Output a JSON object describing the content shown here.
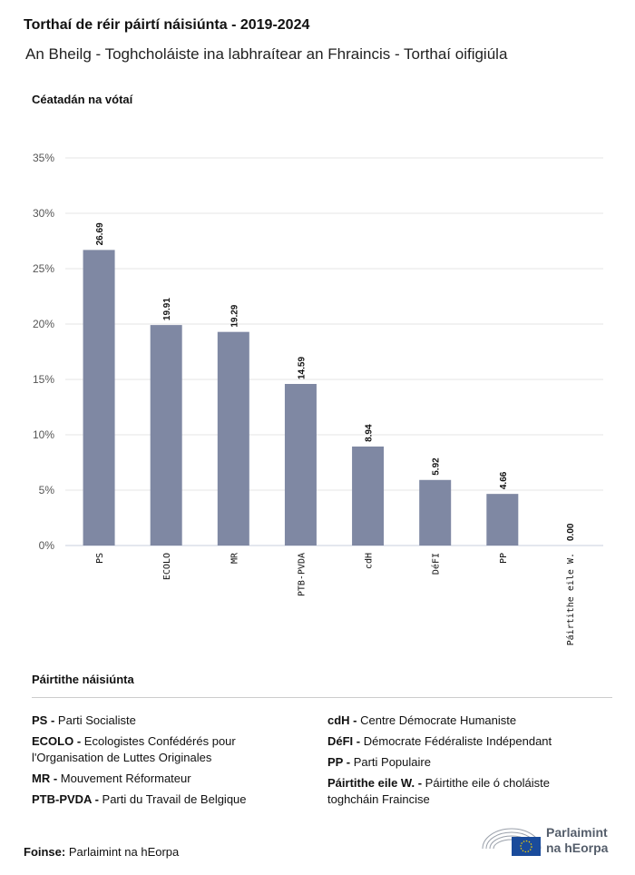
{
  "header": {
    "title": "Torthaí de réir páirtí náisiúnta - 2019-2024",
    "subtitle": "An Bheilg - Toghcholáiste ina labhraítear an Fhraincis - Torthaí oifigiúla"
  },
  "chart_data": {
    "type": "bar",
    "title": "Torthaí de réir páirtí náisiúnta - 2019-2024",
    "subtitle": "An Bheilg - Toghcholáiste ina labhraítear an Fhraincis - Torthaí oifigiúla",
    "ylabel": "Céatadán na vótaí",
    "xlabel": "",
    "categories": [
      "PS",
      "ECOLO",
      "MR",
      "PTB-PVDA",
      "cdH",
      "DéFI",
      "PP",
      "Páirtithe eile W."
    ],
    "values": [
      26.69,
      19.91,
      19.29,
      14.59,
      8.94,
      5.92,
      4.66,
      0.0
    ],
    "ylim": [
      0,
      35
    ],
    "yticks": [
      0,
      5,
      10,
      15,
      20,
      25,
      30,
      35
    ],
    "ytick_labels": [
      "0%",
      "5%",
      "10%",
      "15%",
      "20%",
      "25%",
      "30%",
      "35%"
    ],
    "grid": true,
    "bar_color": "#7f88a3"
  },
  "legend": {
    "title": "Páirtithe náisiúnta",
    "items": [
      {
        "abbr": "PS -",
        "name": "Parti Socialiste"
      },
      {
        "abbr": "ECOLO -",
        "name": "Ecologistes Confédérés pour l'Organisation de Luttes Originales"
      },
      {
        "abbr": "MR -",
        "name": "Mouvement Réformateur"
      },
      {
        "abbr": "PTB-PVDA -",
        "name": "Parti du Travail de Belgique"
      },
      {
        "abbr": "cdH -",
        "name": "Centre Démocrate Humaniste"
      },
      {
        "abbr": "DéFI -",
        "name": "Démocrate Fédéraliste Indépendant"
      },
      {
        "abbr": "PP -",
        "name": "Parti Populaire"
      },
      {
        "abbr": "Páirtithe eile W. -",
        "name": "Páirtithe eile ó choláiste toghcháin Fraincise"
      }
    ]
  },
  "footer": {
    "source_label": "Foinse:",
    "source": "Parlaimint na hEorpa",
    "logo_line1": "Parlaimint",
    "logo_line2": "na hEorpa"
  }
}
